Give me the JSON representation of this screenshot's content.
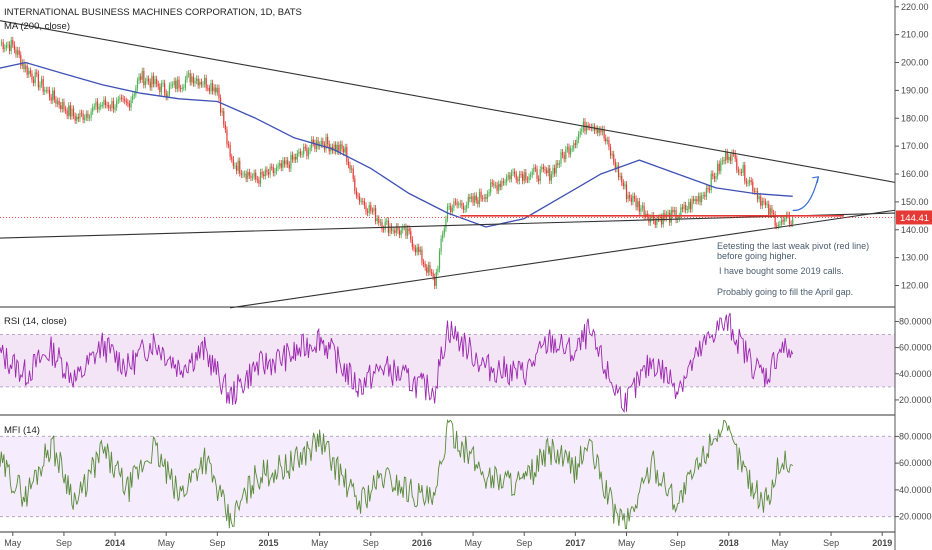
{
  "chart_data": {
    "type": "line",
    "title": "INTERNATIONAL BUSINESS MACHINES CORPORATION, 1D, BATS",
    "x_axis_labels": [
      "May",
      "Sep",
      "2014",
      "May",
      "Sep",
      "2015",
      "May",
      "Sep",
      "2016",
      "May",
      "Sep",
      "2017",
      "May",
      "Sep",
      "2018",
      "May",
      "Sep",
      "2019"
    ],
    "price_pane": {
      "indicator_label": "MA (200, close)",
      "y_ticks": [
        "220.00",
        "210.00",
        "200.00",
        "190.00",
        "180.00",
        "170.00",
        "160.00",
        "150.00",
        "140.00",
        "130.00",
        "120.00"
      ],
      "ylim": [
        113,
        221
      ],
      "last_price_label": "144.41",
      "last_price": 144.41,
      "price_series": [
        {
          "date": "2013-04",
          "value": 207
        },
        {
          "date": "2013-05",
          "value": 206
        },
        {
          "date": "2013-06",
          "value": 198
        },
        {
          "date": "2013-08",
          "value": 188
        },
        {
          "date": "2013-10",
          "value": 180
        },
        {
          "date": "2013-12",
          "value": 185
        },
        {
          "date": "2014-02",
          "value": 185
        },
        {
          "date": "2014-03",
          "value": 195
        },
        {
          "date": "2014-05",
          "value": 190
        },
        {
          "date": "2014-07",
          "value": 195
        },
        {
          "date": "2014-09",
          "value": 191
        },
        {
          "date": "2014-10",
          "value": 165
        },
        {
          "date": "2014-12",
          "value": 158
        },
        {
          "date": "2015-02",
          "value": 162
        },
        {
          "date": "2015-05",
          "value": 172
        },
        {
          "date": "2015-07",
          "value": 168
        },
        {
          "date": "2015-08",
          "value": 152
        },
        {
          "date": "2015-10",
          "value": 142
        },
        {
          "date": "2015-12",
          "value": 138
        },
        {
          "date": "2016-02",
          "value": 121
        },
        {
          "date": "2016-03",
          "value": 148
        },
        {
          "date": "2016-05",
          "value": 150
        },
        {
          "date": "2016-08",
          "value": 160
        },
        {
          "date": "2016-11",
          "value": 160
        },
        {
          "date": "2017-02",
          "value": 179
        },
        {
          "date": "2017-03",
          "value": 176
        },
        {
          "date": "2017-05",
          "value": 153
        },
        {
          "date": "2017-07",
          "value": 144
        },
        {
          "date": "2017-09",
          "value": 145
        },
        {
          "date": "2017-11",
          "value": 153
        },
        {
          "date": "2018-01",
          "value": 168
        },
        {
          "date": "2018-03",
          "value": 155
        },
        {
          "date": "2018-04",
          "value": 147
        },
        {
          "date": "2018-05",
          "value": 142
        },
        {
          "date": "2018-06",
          "value": 144
        }
      ],
      "ma_series": [
        {
          "date": "2013-04",
          "value": 198
        },
        {
          "date": "2013-06",
          "value": 200
        },
        {
          "date": "2013-09",
          "value": 196
        },
        {
          "date": "2013-12",
          "value": 192
        },
        {
          "date": "2014-03",
          "value": 189
        },
        {
          "date": "2014-06",
          "value": 187
        },
        {
          "date": "2014-09",
          "value": 186
        },
        {
          "date": "2014-12",
          "value": 180
        },
        {
          "date": "2015-03",
          "value": 173
        },
        {
          "date": "2015-06",
          "value": 169
        },
        {
          "date": "2015-09",
          "value": 162
        },
        {
          "date": "2015-12",
          "value": 153
        },
        {
          "date": "2016-03",
          "value": 146
        },
        {
          "date": "2016-06",
          "value": 141
        },
        {
          "date": "2016-09",
          "value": 144
        },
        {
          "date": "2016-12",
          "value": 152
        },
        {
          "date": "2017-03",
          "value": 160
        },
        {
          "date": "2017-06",
          "value": 165
        },
        {
          "date": "2017-09",
          "value": 160
        },
        {
          "date": "2017-12",
          "value": 155
        },
        {
          "date": "2018-03",
          "value": 153
        },
        {
          "date": "2018-06",
          "value": 152
        }
      ],
      "trend_lines": [
        {
          "color": "#333333",
          "from": {
            "date": "2013-04",
            "value": 215
          },
          "to": {
            "date": "2019-02",
            "value": 157
          }
        },
        {
          "color": "#333333",
          "from": {
            "date": "2013-04",
            "value": 137
          },
          "to": {
            "date": "2019-02",
            "value": 146
          }
        },
        {
          "color": "#333333",
          "from": {
            "date": "2014-10",
            "value": 112
          },
          "to": {
            "date": "2019-02",
            "value": 147
          }
        },
        {
          "color": "#e53935",
          "from": {
            "date": "2016-04",
            "value": 145
          },
          "to": {
            "date": "2018-10",
            "value": 145
          }
        }
      ],
      "projection_arrow": {
        "color": "#3b6fd4",
        "from": {
          "date": "2018-06",
          "value": 147
        },
        "to": {
          "date": "2018-08",
          "value": 159
        }
      },
      "annotations": [
        "Eetesting the last weak pivot (red line)",
        "before going higher.",
        "I have bought some 2019 calls.",
        "Probably going to fill the April gap."
      ]
    },
    "rsi_pane": {
      "label": "RSI (14, close)",
      "y_ticks": [
        "80.0000",
        "60.0000",
        "40.0000",
        "20.0000"
      ],
      "ylim": [
        10,
        88
      ],
      "band": [
        30,
        70
      ],
      "series": [
        {
          "date": "2013-04",
          "value": 55
        },
        {
          "date": "2013-06",
          "value": 40
        },
        {
          "date": "2013-08",
          "value": 58
        },
        {
          "date": "2013-10",
          "value": 35
        },
        {
          "date": "2013-12",
          "value": 62
        },
        {
          "date": "2014-02",
          "value": 45
        },
        {
          "date": "2014-04",
          "value": 65
        },
        {
          "date": "2014-06",
          "value": 45
        },
        {
          "date": "2014-08",
          "value": 58
        },
        {
          "date": "2014-10",
          "value": 22
        },
        {
          "date": "2014-12",
          "value": 45
        },
        {
          "date": "2015-03",
          "value": 55
        },
        {
          "date": "2015-05",
          "value": 68
        },
        {
          "date": "2015-08",
          "value": 30
        },
        {
          "date": "2015-10",
          "value": 45
        },
        {
          "date": "2016-01",
          "value": 30
        },
        {
          "date": "2016-02",
          "value": 28
        },
        {
          "date": "2016-03",
          "value": 75
        },
        {
          "date": "2016-06",
          "value": 45
        },
        {
          "date": "2016-09",
          "value": 40
        },
        {
          "date": "2016-11",
          "value": 65
        },
        {
          "date": "2017-01",
          "value": 55
        },
        {
          "date": "2017-02",
          "value": 72
        },
        {
          "date": "2017-04",
          "value": 30
        },
        {
          "date": "2017-05",
          "value": 18
        },
        {
          "date": "2017-07",
          "value": 50
        },
        {
          "date": "2017-09",
          "value": 30
        },
        {
          "date": "2017-11",
          "value": 60
        },
        {
          "date": "2017-12",
          "value": 75
        },
        {
          "date": "2018-01",
          "value": 78
        },
        {
          "date": "2018-03",
          "value": 45
        },
        {
          "date": "2018-04",
          "value": 38
        },
        {
          "date": "2018-05",
          "value": 60
        },
        {
          "date": "2018-06",
          "value": 55
        }
      ]
    },
    "mfi_pane": {
      "label": "MFI (14)",
      "y_ticks": [
        "80.0000",
        "60.0000",
        "40.0000",
        "20.0000"
      ],
      "ylim": [
        10,
        93
      ],
      "band": [
        20,
        80
      ],
      "series": [
        {
          "date": "2013-04",
          "value": 60
        },
        {
          "date": "2013-06",
          "value": 35
        },
        {
          "date": "2013-08",
          "value": 75
        },
        {
          "date": "2013-10",
          "value": 30
        },
        {
          "date": "2013-12",
          "value": 70
        },
        {
          "date": "2014-02",
          "value": 40
        },
        {
          "date": "2014-04",
          "value": 72
        },
        {
          "date": "2014-06",
          "value": 35
        },
        {
          "date": "2014-08",
          "value": 65
        },
        {
          "date": "2014-10",
          "value": 15
        },
        {
          "date": "2014-12",
          "value": 50
        },
        {
          "date": "2015-03",
          "value": 60
        },
        {
          "date": "2015-05",
          "value": 78
        },
        {
          "date": "2015-08",
          "value": 30
        },
        {
          "date": "2015-10",
          "value": 50
        },
        {
          "date": "2016-01",
          "value": 35
        },
        {
          "date": "2016-02",
          "value": 30
        },
        {
          "date": "2016-03",
          "value": 88
        },
        {
          "date": "2016-06",
          "value": 50
        },
        {
          "date": "2016-09",
          "value": 45
        },
        {
          "date": "2016-11",
          "value": 70
        },
        {
          "date": "2017-01",
          "value": 55
        },
        {
          "date": "2017-02",
          "value": 75
        },
        {
          "date": "2017-04",
          "value": 25
        },
        {
          "date": "2017-05",
          "value": 15
        },
        {
          "date": "2017-07",
          "value": 60
        },
        {
          "date": "2017-09",
          "value": 30
        },
        {
          "date": "2017-11",
          "value": 65
        },
        {
          "date": "2017-12",
          "value": 85
        },
        {
          "date": "2018-01",
          "value": 80
        },
        {
          "date": "2018-03",
          "value": 40
        },
        {
          "date": "2018-04",
          "value": 30
        },
        {
          "date": "2018-05",
          "value": 62
        },
        {
          "date": "2018-06",
          "value": 58
        }
      ]
    },
    "colors": {
      "candle_up": "#4caf50",
      "candle_down": "#e53935",
      "ma": "#3f51b5",
      "rsi": "#9c27b0",
      "rsi_band": "#f3e5f5",
      "mfi": "#5a8a3a",
      "mfi_band": "#f5edfd",
      "last_price_badge": "#e53935",
      "grid_separator": "#333333"
    }
  }
}
